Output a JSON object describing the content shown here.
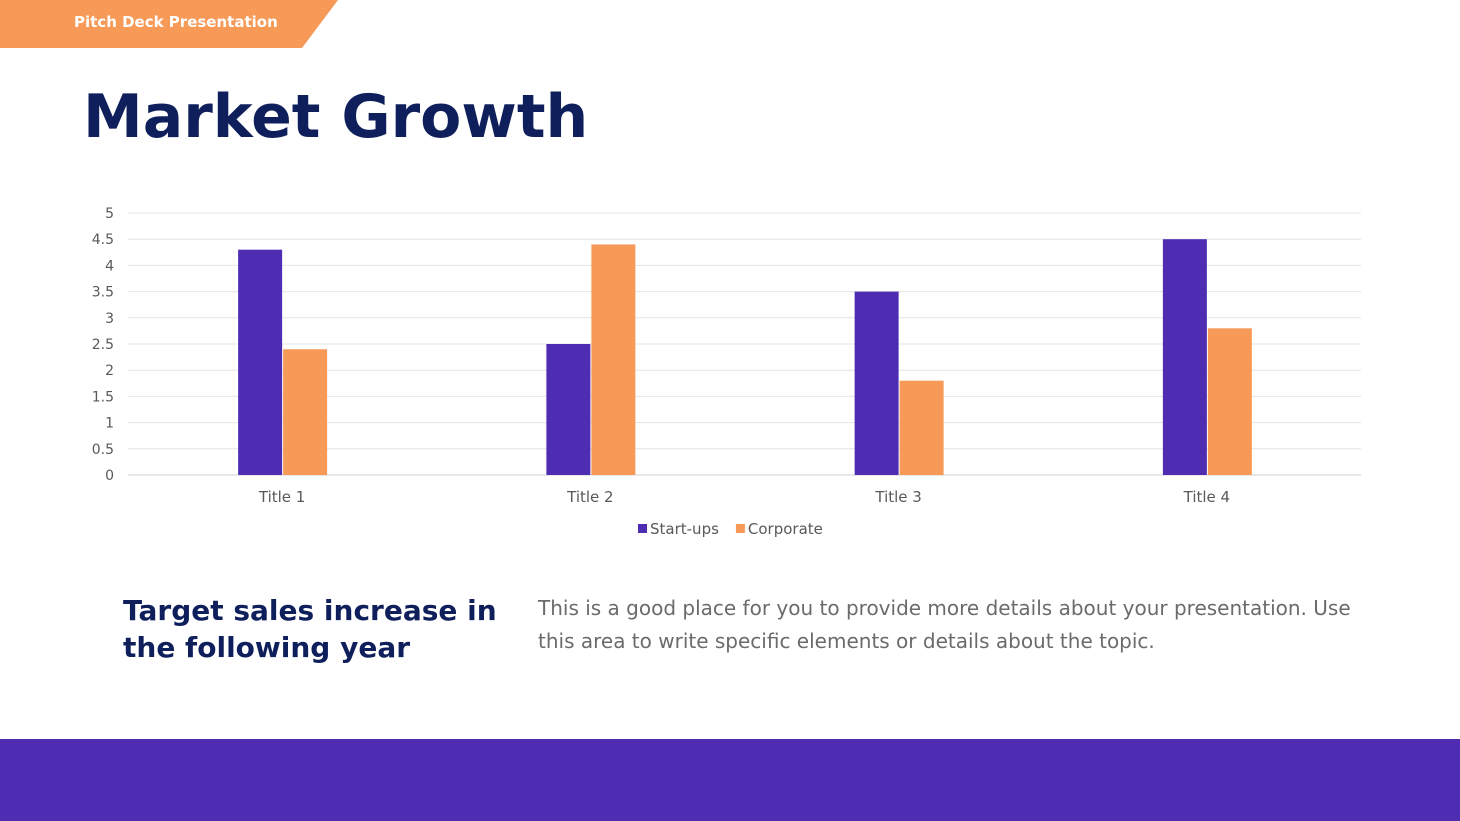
{
  "header": {
    "tag": "Pitch Deck Presentation",
    "title": "Market Growth"
  },
  "colors": {
    "accent_orange": "#F79A58",
    "accent_purple": "#4E2DB3",
    "navy": "#0E1F5B"
  },
  "chart_data": {
    "type": "bar",
    "categories": [
      "Title 1",
      "Title 2",
      "Title 3",
      "Title 4"
    ],
    "series": [
      {
        "name": "Start-ups",
        "values": [
          4.3,
          2.5,
          3.5,
          4.5
        ],
        "color": "#4E2DB3"
      },
      {
        "name": "Corporate",
        "values": [
          2.4,
          4.4,
          1.8,
          2.8
        ],
        "color": "#F79A58"
      }
    ],
    "yticks": [
      "0",
      "0.5",
      "1",
      "1.5",
      "2",
      "2.5",
      "3",
      "3.5",
      "4",
      "4.5",
      "5"
    ],
    "ylim": [
      0,
      5
    ],
    "grid": true,
    "legend": "bottom"
  },
  "body": {
    "subtitle": "Target sales increase in the following year",
    "description": "This is a good place for you to provide more details about your presentation. Use this area to write specific elements or details about the topic."
  }
}
